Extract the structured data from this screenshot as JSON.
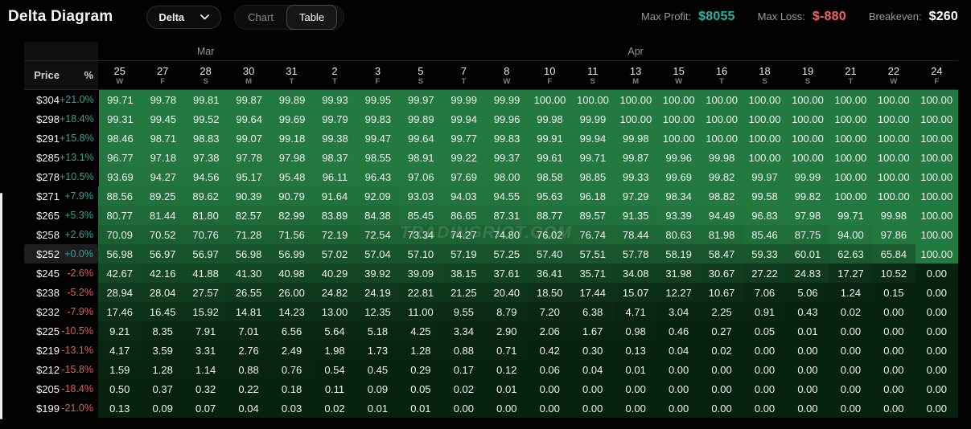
{
  "header": {
    "title": "Delta Diagram",
    "metric_dropdown": {
      "value": "Delta"
    },
    "view_toggle": {
      "options": [
        "Chart",
        "Table"
      ],
      "active": "Table"
    },
    "stats": [
      {
        "label": "Max Profit:",
        "value": "$8055",
        "color": "#2bb0a2"
      },
      {
        "label": "Max Loss:",
        "value": "$-880",
        "color": "#ef6562"
      },
      {
        "label": "Breakeven:",
        "value": "$260",
        "color": "#ffffff"
      }
    ]
  },
  "colors": {
    "positive_pct": "#2aa79b",
    "negative_pct": "#e25f5c",
    "cell_scale_low": [
      8,
      34,
      16
    ],
    "cell_scale_high": [
      35,
      122,
      64
    ]
  },
  "watermark": "TRADINGRIOT.COM",
  "table": {
    "corner": {
      "price": "Price",
      "percent": "%"
    },
    "months": [
      {
        "label": "Mar",
        "cols": 5
      },
      {
        "label": "Apr",
        "cols": 15
      }
    ],
    "columns": [
      {
        "day": "25",
        "weekday": "W"
      },
      {
        "day": "27",
        "weekday": "F"
      },
      {
        "day": "28",
        "weekday": "S"
      },
      {
        "day": "30",
        "weekday": "M"
      },
      {
        "day": "31",
        "weekday": "T"
      },
      {
        "day": "2",
        "weekday": "T"
      },
      {
        "day": "3",
        "weekday": "F"
      },
      {
        "day": "5",
        "weekday": "S"
      },
      {
        "day": "7",
        "weekday": "T"
      },
      {
        "day": "8",
        "weekday": "W"
      },
      {
        "day": "10",
        "weekday": "F"
      },
      {
        "day": "11",
        "weekday": "S"
      },
      {
        "day": "13",
        "weekday": "M"
      },
      {
        "day": "15",
        "weekday": "W"
      },
      {
        "day": "16",
        "weekday": "T"
      },
      {
        "day": "18",
        "weekday": "S"
      },
      {
        "day": "19",
        "weekday": "S"
      },
      {
        "day": "21",
        "weekday": "T"
      },
      {
        "day": "22",
        "weekday": "W"
      },
      {
        "day": "24",
        "weekday": "F"
      }
    ],
    "rows": [
      {
        "price": "$304",
        "percent": "+21.0%",
        "sign": "pos",
        "highlight": false,
        "values": [
          99.71,
          99.78,
          99.81,
          99.87,
          99.89,
          99.93,
          99.95,
          99.97,
          99.99,
          99.99,
          100.0,
          100.0,
          100.0,
          100.0,
          100.0,
          100.0,
          100.0,
          100.0,
          100.0,
          100.0
        ]
      },
      {
        "price": "$298",
        "percent": "+18.4%",
        "sign": "pos",
        "highlight": false,
        "values": [
          99.31,
          99.45,
          99.52,
          99.64,
          99.69,
          99.79,
          99.83,
          99.89,
          99.94,
          99.96,
          99.98,
          99.99,
          100.0,
          100.0,
          100.0,
          100.0,
          100.0,
          100.0,
          100.0,
          100.0
        ]
      },
      {
        "price": "$291",
        "percent": "+15.8%",
        "sign": "pos",
        "highlight": false,
        "values": [
          98.46,
          98.71,
          98.83,
          99.07,
          99.18,
          99.38,
          99.47,
          99.64,
          99.77,
          99.83,
          99.91,
          99.94,
          99.98,
          100.0,
          100.0,
          100.0,
          100.0,
          100.0,
          100.0,
          100.0
        ]
      },
      {
        "price": "$285",
        "percent": "+13.1%",
        "sign": "pos",
        "highlight": false,
        "values": [
          96.77,
          97.18,
          97.38,
          97.78,
          97.98,
          98.37,
          98.55,
          98.91,
          99.22,
          99.37,
          99.61,
          99.71,
          99.87,
          99.96,
          99.98,
          100.0,
          100.0,
          100.0,
          100.0,
          100.0
        ]
      },
      {
        "price": "$278",
        "percent": "+10.5%",
        "sign": "pos",
        "highlight": false,
        "values": [
          93.69,
          94.27,
          94.56,
          95.17,
          95.48,
          96.11,
          96.43,
          97.06,
          97.69,
          98.0,
          98.58,
          98.85,
          99.33,
          99.69,
          99.82,
          99.97,
          99.99,
          100.0,
          100.0,
          100.0
        ]
      },
      {
        "price": "$271",
        "percent": "+7.9%",
        "sign": "pos",
        "highlight": false,
        "values": [
          88.56,
          89.25,
          89.62,
          90.39,
          90.79,
          91.64,
          92.09,
          93.03,
          94.03,
          94.55,
          95.63,
          96.18,
          97.29,
          98.34,
          98.82,
          99.58,
          99.82,
          100.0,
          100.0,
          100.0
        ]
      },
      {
        "price": "$265",
        "percent": "+5.3%",
        "sign": "pos",
        "highlight": false,
        "values": [
          80.77,
          81.44,
          81.8,
          82.57,
          82.99,
          83.89,
          84.38,
          85.45,
          86.65,
          87.31,
          88.77,
          89.57,
          91.35,
          93.39,
          94.49,
          96.83,
          97.98,
          99.71,
          99.98,
          100.0
        ]
      },
      {
        "price": "$258",
        "percent": "+2.6%",
        "sign": "pos",
        "highlight": false,
        "values": [
          70.09,
          70.52,
          70.76,
          71.28,
          71.56,
          72.19,
          72.54,
          73.34,
          74.27,
          74.8,
          76.02,
          76.74,
          78.44,
          80.63,
          81.98,
          85.46,
          87.75,
          94.0,
          97.86,
          100.0
        ]
      },
      {
        "price": "$252",
        "percent": "+0.0%",
        "sign": "pos",
        "highlight": true,
        "values": [
          56.98,
          56.97,
          56.97,
          56.98,
          56.99,
          57.02,
          57.04,
          57.1,
          57.19,
          57.25,
          57.4,
          57.51,
          57.78,
          58.19,
          58.47,
          59.33,
          60.01,
          62.63,
          65.84,
          100.0
        ]
      },
      {
        "price": "$245",
        "percent": "-2.6%",
        "sign": "neg",
        "highlight": false,
        "values": [
          42.67,
          42.16,
          41.88,
          41.3,
          40.98,
          40.29,
          39.92,
          39.09,
          38.15,
          37.61,
          36.41,
          35.71,
          34.08,
          31.98,
          30.67,
          27.22,
          24.83,
          17.27,
          10.52,
          0.0
        ]
      },
      {
        "price": "$238",
        "percent": "-5.2%",
        "sign": "neg",
        "highlight": false,
        "values": [
          28.94,
          28.04,
          27.57,
          26.55,
          26.0,
          24.82,
          24.19,
          22.81,
          21.25,
          20.4,
          18.5,
          17.44,
          15.07,
          12.27,
          10.67,
          7.06,
          5.06,
          1.24,
          0.15,
          0.0
        ]
      },
      {
        "price": "$232",
        "percent": "-7.9%",
        "sign": "neg",
        "highlight": false,
        "values": [
          17.46,
          16.45,
          15.92,
          14.81,
          14.23,
          13.0,
          12.35,
          11.0,
          9.55,
          8.79,
          7.2,
          6.38,
          4.71,
          3.04,
          2.25,
          0.91,
          0.43,
          0.02,
          0.0,
          0.0
        ]
      },
      {
        "price": "$225",
        "percent": "-10.5%",
        "sign": "neg",
        "highlight": false,
        "values": [
          9.21,
          8.35,
          7.91,
          7.01,
          6.56,
          5.64,
          5.18,
          4.25,
          3.34,
          2.9,
          2.06,
          1.67,
          0.98,
          0.46,
          0.27,
          0.05,
          0.01,
          0.0,
          0.0,
          0.0
        ]
      },
      {
        "price": "$219",
        "percent": "-13.1%",
        "sign": "neg",
        "highlight": false,
        "values": [
          4.17,
          3.59,
          3.31,
          2.76,
          2.49,
          1.98,
          1.73,
          1.28,
          0.88,
          0.71,
          0.42,
          0.3,
          0.13,
          0.04,
          0.02,
          0.0,
          0.0,
          0.0,
          0.0,
          0.0
        ]
      },
      {
        "price": "$212",
        "percent": "-15.8%",
        "sign": "neg",
        "highlight": false,
        "values": [
          1.59,
          1.28,
          1.14,
          0.88,
          0.76,
          0.54,
          0.45,
          0.29,
          0.17,
          0.12,
          0.06,
          0.04,
          0.01,
          0.0,
          0.0,
          0.0,
          0.0,
          0.0,
          0.0,
          0.0
        ]
      },
      {
        "price": "$205",
        "percent": "-18.4%",
        "sign": "neg",
        "highlight": false,
        "values": [
          0.5,
          0.37,
          0.32,
          0.22,
          0.18,
          0.11,
          0.09,
          0.05,
          0.02,
          0.01,
          0.0,
          0.0,
          0.0,
          0.0,
          0.0,
          0.0,
          0.0,
          0.0,
          0.0,
          0.0
        ]
      },
      {
        "price": "$199",
        "percent": "-21.0%",
        "sign": "neg",
        "highlight": false,
        "values": [
          0.13,
          0.09,
          0.07,
          0.04,
          0.03,
          0.02,
          0.01,
          0.01,
          0.0,
          0.0,
          0.0,
          0.0,
          0.0,
          0.0,
          0.0,
          0.0,
          0.0,
          0.0,
          0.0,
          0.0
        ]
      }
    ]
  }
}
